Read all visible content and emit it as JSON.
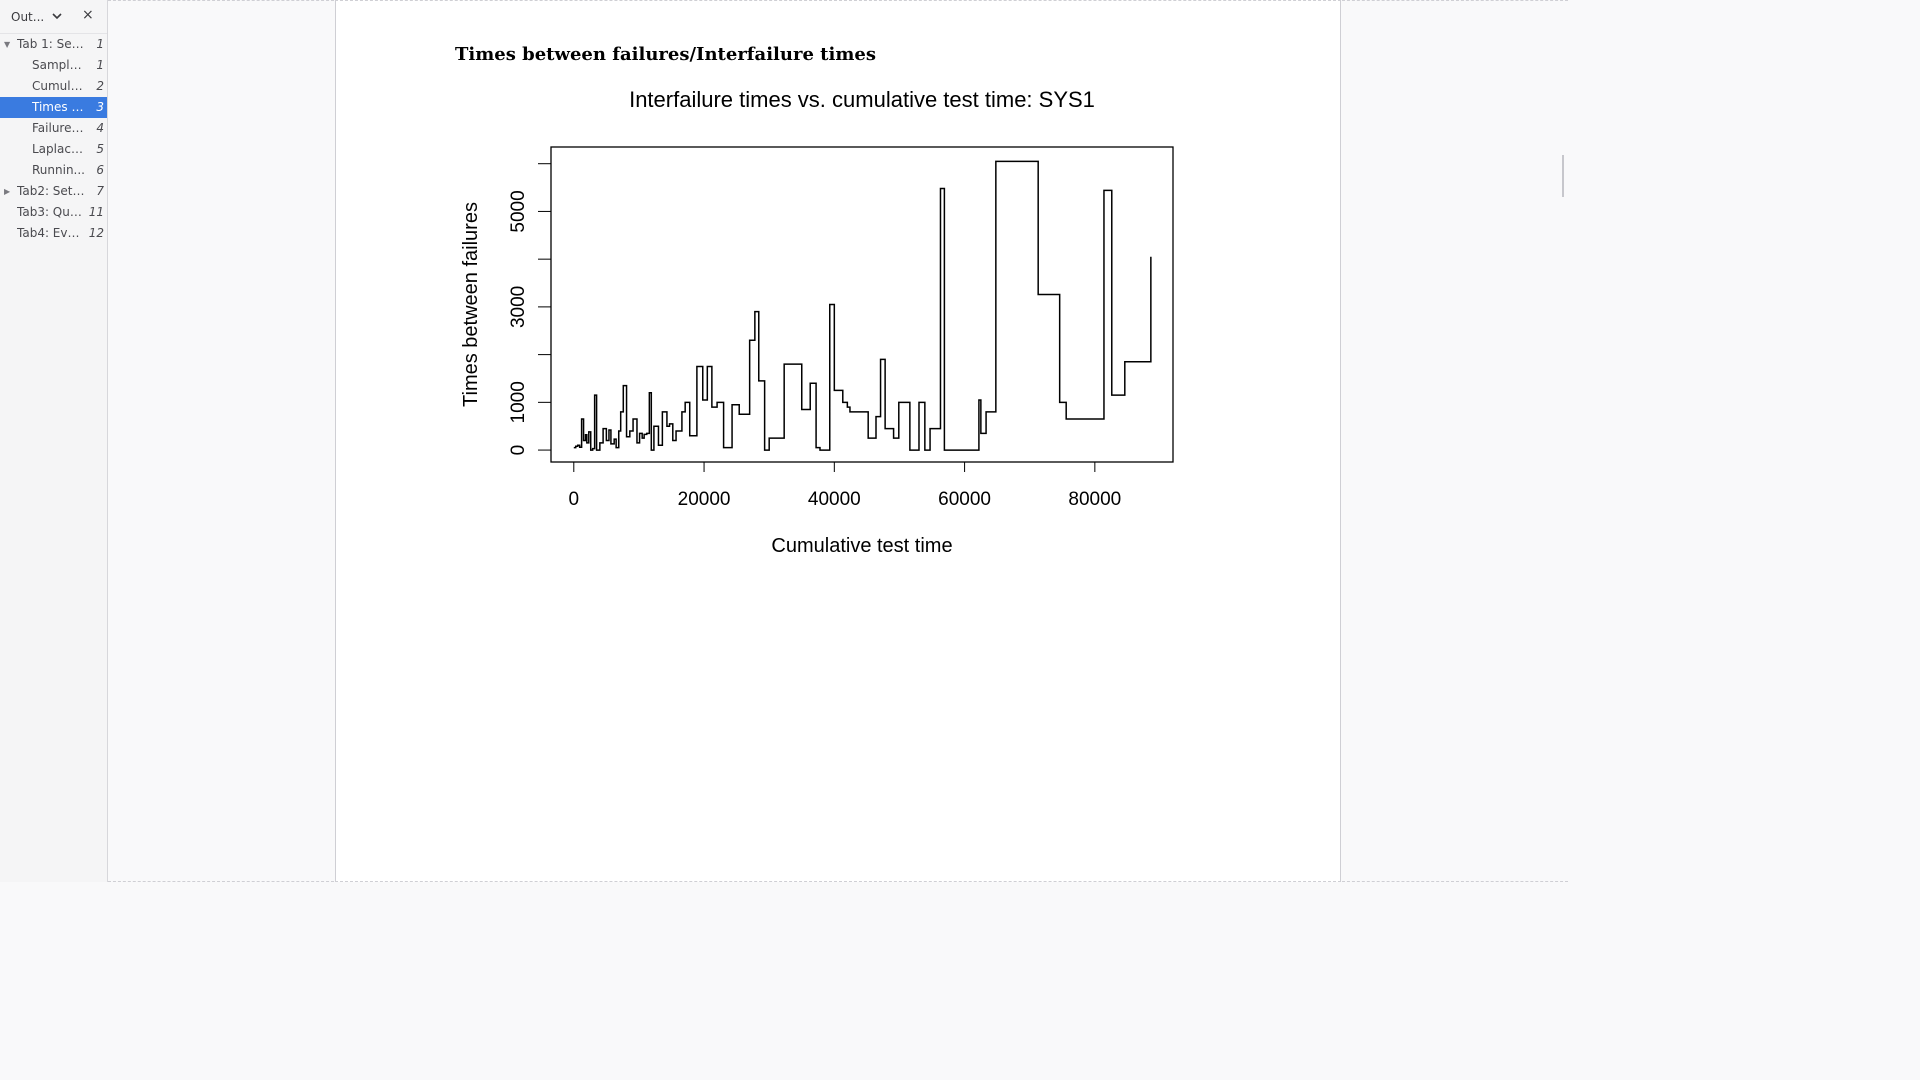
{
  "sidebar": {
    "title": "Out...",
    "chevron_icon": "chevron-down-icon",
    "close_label": "×",
    "items": [
      {
        "label": "Tab 1: Sele...",
        "page": "1",
        "level": 0,
        "expanded": true
      },
      {
        "label": "Sample ...",
        "page": "1",
        "level": 1
      },
      {
        "label": "Cumula...",
        "page": "2",
        "level": 1
      },
      {
        "label": "Times b...",
        "page": "3",
        "level": 1,
        "selected": true
      },
      {
        "label": "Failure i...",
        "page": "4",
        "level": 1
      },
      {
        "label": "Laplace...",
        "page": "5",
        "level": 1
      },
      {
        "label": "Runnin...",
        "page": "6",
        "level": 1
      },
      {
        "label": "Tab2: Set ...",
        "page": "7",
        "level": 0,
        "expanded": false
      },
      {
        "label": "Tab3: Quer...",
        "page": "11",
        "level": 0
      },
      {
        "label": "Tab4: Eval...",
        "page": "12",
        "level": 0
      }
    ],
    "selected_color": "#3a7be0"
  },
  "document": {
    "section_heading": "Times between failures/Interfailure times"
  },
  "chart_data": {
    "type": "line",
    "step": true,
    "title": "Interfailure times vs. cumulative test time: SYS1",
    "xlabel": "Cumulative test time",
    "ylabel": "Times between failures",
    "xlim": [
      -3500,
      92000
    ],
    "ylim": [
      -250,
      6350
    ],
    "xticks": [
      0,
      20000,
      40000,
      60000,
      80000
    ],
    "xtick_labels": [
      "0",
      "20000",
      "40000",
      "60000",
      "80000"
    ],
    "yticks": [
      0,
      1000,
      2000,
      3000,
      4000,
      5000,
      6000
    ],
    "ytick_labels": [
      "0",
      "1000",
      "",
      "3000",
      "",
      "5000",
      ""
    ],
    "series": [
      {
        "x": [
          0,
          300,
          600,
          900,
          1200,
          1500,
          1800,
          2000,
          2300,
          2600,
          2900,
          3200,
          3500,
          4000,
          4500,
          5000,
          5400,
          5700,
          6200,
          6500,
          6900,
          7200,
          7600,
          8100,
          8600,
          9100,
          9700,
          10100,
          10500,
          10800,
          11200,
          11600,
          11900,
          12300,
          13000,
          13600,
          14300,
          14700,
          15200,
          15700,
          16100,
          16600,
          17100,
          17800,
          18200,
          18900,
          19800,
          20500,
          21200,
          22000,
          23000,
          24300,
          25400,
          26200,
          27000,
          27800,
          28400,
          29300,
          30000,
          32300,
          35000,
          36300,
          37200,
          37800,
          39300,
          40000,
          41300,
          42000,
          42400,
          45200,
          46400,
          47100,
          47800,
          48500,
          49100,
          49900,
          51600,
          52300,
          53000,
          53900,
          54700,
          55600,
          56300,
          56900,
          62200,
          62500,
          63300,
          64000,
          64800,
          71300,
          74600,
          75600,
          76100,
          81400,
          82600,
          84600,
          88600
        ],
        "y": [
          50,
          80,
          100,
          60,
          650,
          200,
          320,
          150,
          380,
          0,
          30,
          1150,
          0,
          150,
          450,
          200,
          420,
          130,
          230,
          50,
          400,
          800,
          1350,
          280,
          400,
          650,
          150,
          350,
          250,
          330,
          350,
          1200,
          0,
          500,
          100,
          800,
          500,
          550,
          200,
          400,
          400,
          800,
          1000,
          300,
          300,
          1750,
          1050,
          1750,
          900,
          1000,
          50,
          950,
          750,
          750,
          2300,
          2900,
          1450,
          0,
          250,
          1800,
          850,
          1400,
          50,
          0,
          3050,
          1250,
          1000,
          900,
          800,
          250,
          700,
          1900,
          450,
          450,
          250,
          1000,
          0,
          0,
          1000,
          0,
          450,
          450,
          5480,
          0,
          1050,
          350,
          800,
          800,
          6050,
          3260,
          1000,
          650,
          650,
          5440,
          1150,
          1850,
          4050
        ]
      }
    ],
    "grid": false,
    "legend": "none"
  }
}
